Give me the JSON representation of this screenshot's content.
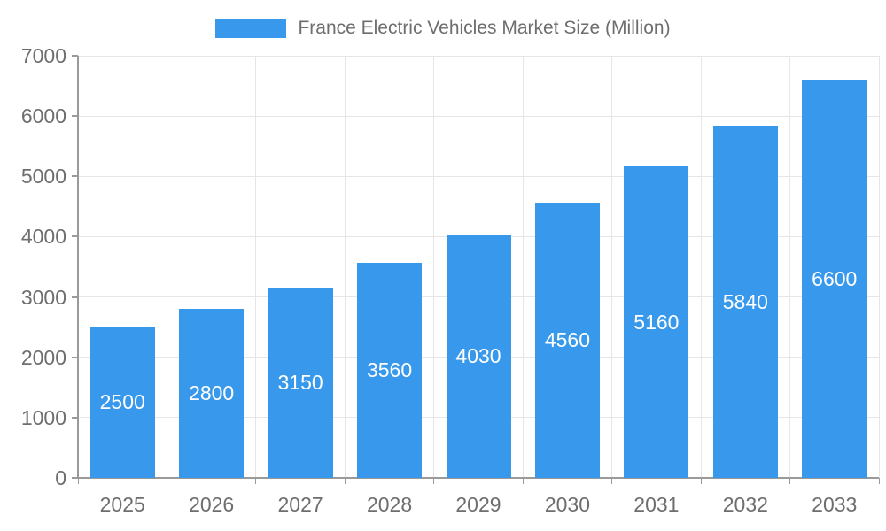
{
  "legend": {
    "label": "France Electric Vehicles Market Size (Million)"
  },
  "colors": {
    "bar": "#3899EC",
    "axis_text": "#6E6E6E",
    "grid_line": "#E6E6E6",
    "axis_line": "#9A9A9A",
    "value_label": "#FFFFFF",
    "background": "#FFFFFF"
  },
  "chart_data": {
    "type": "bar",
    "title": "France Electric Vehicles Market Size (Million)",
    "series_name": "France Electric Vehicles Market Size (Million)",
    "categories": [
      "2025",
      "2026",
      "2027",
      "2028",
      "2029",
      "2030",
      "2031",
      "2032",
      "2033"
    ],
    "values": [
      2500,
      2800,
      3150,
      3560,
      4030,
      4560,
      5160,
      5840,
      6600
    ],
    "xlabel": "",
    "ylabel": "",
    "ylim": [
      0,
      7000
    ],
    "yticks": [
      0,
      1000,
      2000,
      3000,
      4000,
      5000,
      6000,
      7000
    ],
    "grid": true,
    "legend_position": "top",
    "value_labels_inside_bars": true
  }
}
